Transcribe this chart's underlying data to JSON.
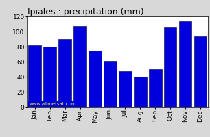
{
  "title": "Ipiales : precipitation (mm)",
  "categories": [
    "Jan",
    "Feb",
    "Mar",
    "Apr",
    "May",
    "Jun",
    "Jul",
    "Aug",
    "Sep",
    "Oct",
    "Nov",
    "Dec"
  ],
  "values": [
    82,
    80,
    90,
    107,
    75,
    61,
    47,
    40,
    50,
    105,
    114,
    94
  ],
  "bar_color": "#0000dd",
  "bar_edge_color": "#000033",
  "ylim": [
    0,
    120
  ],
  "yticks": [
    0,
    20,
    40,
    60,
    80,
    100,
    120
  ],
  "background_color": "#d8d8d8",
  "plot_bg_color": "#ffffff",
  "title_fontsize": 9,
  "tick_fontsize": 6.5,
  "watermark": "www.allmetsat.com",
  "watermark_color": "#ffff00",
  "watermark_bg": "#0000dd",
  "grid_color": "#aaaaaa",
  "title_color": "#000000"
}
